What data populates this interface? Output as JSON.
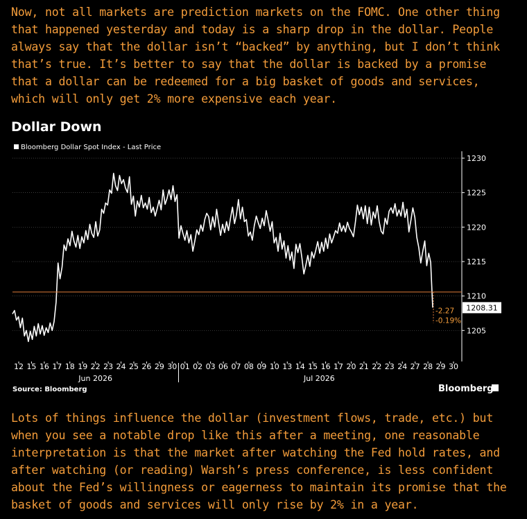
{
  "intro_text": "Now, not all markets are prediction markets on the FOMC. One other thing that happened yesterday and today is a sharp drop in the dollar. People always say that the dollar isn’t “backed” by anything, but I don’t think that’s true. It’s better to say that the dollar is backed by a promise that a dollar can be redeemed for a big basket of goods and services, which will only get 2% more expensive each year.",
  "outro_text": "Lots of things influence the dollar (investment flows, trade, etc.) but when you see a notable drop like this after a meeting, one reasonable interpretation is that the market after watching the Fed hold rates, and after watching (or reading) Warsh’s press conference, is less confident about the Fed’s willingness or eagerness to maintain its promise that the basket of goods and services will only rise by 2% in a year.",
  "chart_title": "Dollar Down",
  "source": "Source: Bloomberg",
  "brand": "Bloomberg",
  "colors": {
    "text_accent": "#f39c3a",
    "line": "#ffffff",
    "background": "#000000",
    "grid": "#555555",
    "ref_line": "#e07b39"
  },
  "chart_data": {
    "type": "line",
    "legend": "Bloomberg Dollar Spot Index - Last Price",
    "x_tick_labels": [
      "12",
      "15",
      "16",
      "17",
      "18",
      "19",
      "22",
      "23",
      "24",
      "25",
      "26",
      "29",
      "30",
      "01",
      "02",
      "03",
      "06",
      "07",
      "08",
      "09",
      "10",
      "13",
      "14",
      "15",
      "16",
      "17",
      "20",
      "21",
      "22",
      "23",
      "24",
      "27",
      "28",
      "29",
      "30"
    ],
    "month_labels": [
      "Jun 2026",
      "Jul 2026"
    ],
    "y_ticks": [
      1205,
      1210,
      1215,
      1220,
      1225,
      1230
    ],
    "ylim": [
      1200.5,
      1230.5
    ],
    "last_value_label": "1208.31",
    "last_value": 1208.31,
    "reference_value": 1210.58,
    "change_abs": "-2.27",
    "change_pct": "-0.19%",
    "series": [
      {
        "values": [
          1207.4,
          1207.9,
          1206.5,
          1207.0,
          1205.4,
          1206.8,
          1204.2,
          1205.0,
          1203.4,
          1204.9,
          1203.7,
          1205.6,
          1204.2,
          1206.0,
          1204.5,
          1205.7,
          1204.3,
          1205.4,
          1204.7,
          1206.1,
          1205.0,
          1206.3,
          1209.1,
          1214.8,
          1212.5,
          1214.2,
          1217.4,
          1216.6,
          1218.3,
          1217.3,
          1219.4,
          1218.0,
          1217.1,
          1218.8,
          1216.9,
          1218.6,
          1217.7,
          1219.5,
          1218.2,
          1220.4,
          1219.1,
          1218.5,
          1220.8,
          1218.7,
          1219.6,
          1222.6,
          1222.0,
          1223.5,
          1223.2,
          1225.4,
          1224.9,
          1227.8,
          1226.0,
          1225.3,
          1227.5,
          1226.3,
          1226.9,
          1225.7,
          1225.0,
          1227.3,
          1223.3,
          1224.5,
          1221.6,
          1223.8,
          1222.9,
          1224.6,
          1222.8,
          1223.5,
          1222.6,
          1224.3,
          1222.1,
          1222.9,
          1221.6,
          1222.7,
          1223.9,
          1222.5,
          1225.4,
          1223.3,
          1224.2,
          1225.4,
          1224.0,
          1226.0,
          1223.7,
          1224.7,
          1218.4,
          1220.2,
          1219.1,
          1218.1,
          1219.5,
          1217.7,
          1218.9,
          1216.5,
          1218.0,
          1219.6,
          1218.9,
          1220.3,
          1219.4,
          1221.1,
          1222.0,
          1221.5,
          1219.6,
          1221.5,
          1220.0,
          1222.6,
          1220.6,
          1218.8,
          1220.4,
          1219.2,
          1220.8,
          1219.5,
          1221.3,
          1222.9,
          1220.5,
          1221.8,
          1224.0,
          1221.2,
          1222.9,
          1220.8,
          1221.1,
          1218.7,
          1219.3,
          1218.1,
          1220.2,
          1221.6,
          1220.6,
          1219.8,
          1221.3,
          1220.2,
          1222.4,
          1221.0,
          1219.4,
          1220.8,
          1217.7,
          1218.5,
          1216.5,
          1219.1,
          1216.8,
          1218.0,
          1215.5,
          1217.3,
          1215.2,
          1216.4,
          1214.0,
          1217.5,
          1216.3,
          1217.6,
          1215.6,
          1213.2,
          1214.5,
          1215.9,
          1214.3,
          1216.4,
          1215.5,
          1216.6,
          1217.9,
          1216.2,
          1217.8,
          1216.5,
          1218.4,
          1216.9,
          1219.0,
          1217.7,
          1218.6,
          1219.5,
          1219.1,
          1220.6,
          1219.4,
          1220.2,
          1219.3,
          1220.7,
          1219.8,
          1219.3,
          1218.6,
          1220.7,
          1223.2,
          1221.8,
          1222.9,
          1221.2,
          1223.1,
          1220.5,
          1222.9,
          1220.3,
          1222.2,
          1221.3,
          1223.1,
          1220.8,
          1219.4,
          1219.0,
          1221.3,
          1220.4,
          1222.3,
          1222.8,
          1222.0,
          1223.4,
          1221.6,
          1222.5,
          1221.6,
          1223.6,
          1221.4,
          1222.6,
          1219.3,
          1221.0,
          1222.8,
          1221.4,
          1218.5,
          1217.0,
          1214.8,
          1216.5,
          1218.0,
          1214.4,
          1216.2,
          1214.9,
          1208.31
        ],
        "color": "#ffffff"
      }
    ]
  }
}
